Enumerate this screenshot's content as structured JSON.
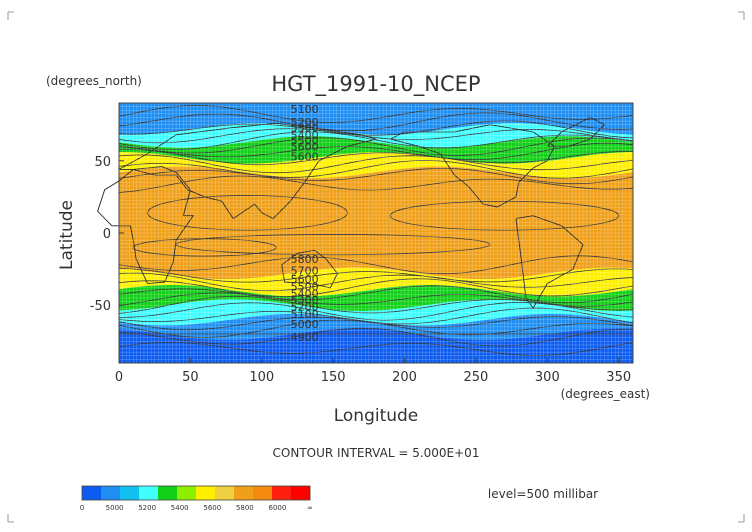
{
  "chart_data": {
    "type": "heatmap",
    "title": "HGT_1991-10_NCEP",
    "xlabel": "Longitude",
    "ylabel": "Latitude",
    "x_units": "(degrees_east)",
    "y_units": "(degrees_north)",
    "xlim": [
      0,
      360
    ],
    "ylim": [
      -90,
      90
    ],
    "xticks": [
      "0",
      "50",
      "100",
      "150",
      "200",
      "250",
      "300",
      "350"
    ],
    "yticks": [
      "50",
      "0",
      "-50"
    ],
    "grid": true,
    "contour_interval_label": "CONTOUR INTERVAL = 5.000E+01",
    "level_label": "level=500 millibar",
    "contour_labels": [
      "5100",
      "5200",
      "5300",
      "5400",
      "5500",
      "5600",
      "5600",
      "5800",
      "5700",
      "5600",
      "5500",
      "5400",
      "5300",
      "5200",
      "5100",
      "5000",
      "4900"
    ],
    "colorbar": {
      "tick_labels": [
        "0",
        "5000",
        "5200",
        "5400",
        "5600",
        "5800",
        "6000",
        "∞"
      ],
      "colors": [
        "#0c5cf2",
        "#1e8ef2",
        "#12c0f0",
        "#40ffff",
        "#12d018",
        "#8cf000",
        "#fff000",
        "#f0d040",
        "#f0a018",
        "#f58a10",
        "#ff2010",
        "#ff0000"
      ]
    },
    "bands": [
      {
        "min_lat": 72,
        "max_lat": 90,
        "color": "#1e8ef2"
      },
      {
        "min_lat": 63,
        "max_lat": 72,
        "color": "#40ffff"
      },
      {
        "min_lat": 52,
        "max_lat": 63,
        "color": "#12d018"
      },
      {
        "min_lat": 42,
        "max_lat": 52,
        "color": "#fff000"
      },
      {
        "min_lat": -28,
        "max_lat": 42,
        "color": "#f0a018"
      },
      {
        "min_lat": -40,
        "max_lat": -28,
        "color": "#fff000"
      },
      {
        "min_lat": -50,
        "max_lat": -40,
        "color": "#12d018"
      },
      {
        "min_lat": -60,
        "max_lat": -50,
        "color": "#40ffff"
      },
      {
        "min_lat": -70,
        "max_lat": -60,
        "color": "#1e8ef2"
      },
      {
        "min_lat": -90,
        "max_lat": -70,
        "color": "#0c5cf2"
      }
    ]
  }
}
